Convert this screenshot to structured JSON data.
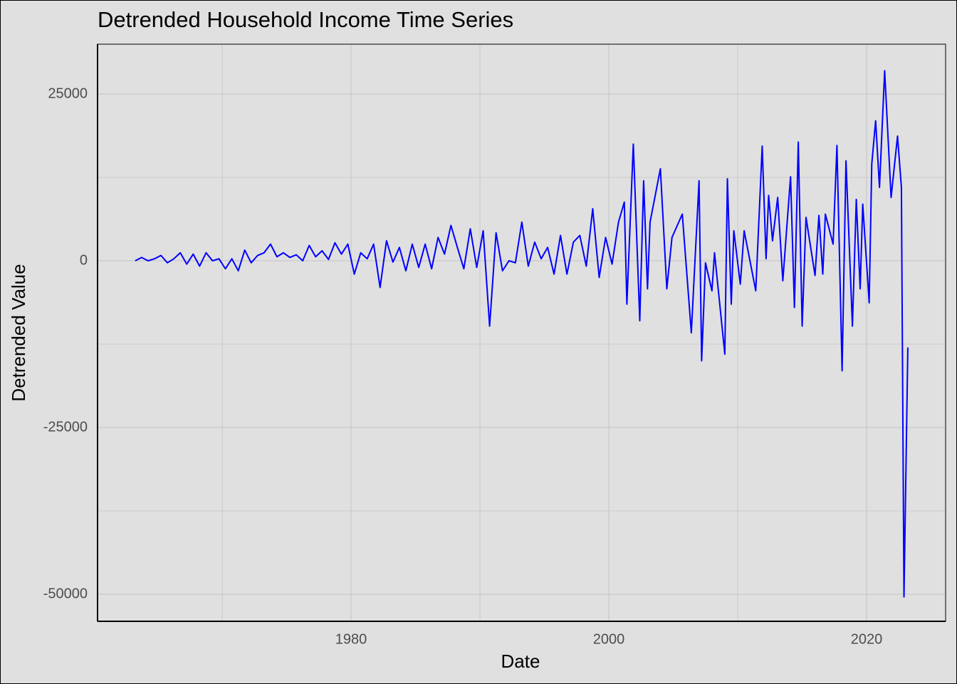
{
  "chart_data": {
    "type": "line",
    "title": "Detrended Household Income Time Series",
    "xlabel": "Date",
    "ylabel": "Detrended Value",
    "color": "#0000ff",
    "grid": true,
    "xlim": [
      1960.33,
      2026.13
    ],
    "ylim": [
      -54060,
      32480
    ],
    "xticks": [
      1980,
      2000,
      2020
    ],
    "yticks": [
      -50000,
      -25000,
      0,
      25000
    ],
    "x": [
      1963.25,
      1963.75,
      1964.25,
      1964.75,
      1965.25,
      1965.75,
      1966.25,
      1966.75,
      1967.25,
      1967.75,
      1968.25,
      1968.75,
      1969.25,
      1969.75,
      1970.25,
      1970.75,
      1971.25,
      1971.75,
      1972.25,
      1972.75,
      1973.25,
      1973.75,
      1974.25,
      1974.75,
      1975.25,
      1975.75,
      1976.25,
      1976.75,
      1977.25,
      1977.75,
      1978.25,
      1978.75,
      1979.25,
      1979.75,
      1980.25,
      1980.75,
      1981.25,
      1981.75,
      1982.25,
      1982.75,
      1983.25,
      1983.75,
      1984.25,
      1984.75,
      1985.25,
      1985.75,
      1986.25,
      1986.75,
      1987.25,
      1987.75,
      1988.25,
      1988.75,
      1989.25,
      1989.75,
      1990.25,
      1990.75,
      1991.25,
      1991.75,
      1992.25,
      1992.75,
      1993.25,
      1993.75,
      1994.25,
      1994.75,
      1995.25,
      1995.75,
      1996.25,
      1996.75,
      1997.25,
      1997.75,
      1998.25,
      1998.75,
      1999.25,
      1999.75,
      2000.25,
      2000.75,
      2001.2,
      2001.4,
      2001.9,
      2002.4,
      2002.7,
      2003,
      2003.2,
      2004,
      2004.5,
      2004.9,
      2005.7,
      2006.4,
      2007,
      2007.2,
      2007.5,
      2008,
      2008.2,
      2009,
      2009.2,
      2009.5,
      2009.7,
      2010.2,
      2010.5,
      2011.4,
      2011.9,
      2012.2,
      2012.4,
      2012.7,
      2013.1,
      2013.5,
      2014.1,
      2014.4,
      2014.7,
      2015,
      2015.3,
      2016,
      2016.3,
      2016.6,
      2016.8,
      2017.4,
      2017.7,
      2018.1,
      2018.4,
      2018.9,
      2019.2,
      2019.5,
      2019.7,
      2020.2,
      2020.4,
      2020.7,
      2021,
      2021.4,
      2021.9,
      2022.4,
      2022.7,
      2022.9,
      2023.2
    ],
    "values": [
      0,
      500,
      0,
      300,
      800,
      -300,
      300,
      1200,
      -500,
      1000,
      -800,
      1200,
      0,
      300,
      -1200,
      300,
      -1500,
      1600,
      -300,
      800,
      1200,
      2500,
      600,
      1200,
      500,
      900,
      0,
      2300,
      600,
      1500,
      200,
      2700,
      1000,
      2500,
      -2000,
      1200,
      300,
      2500,
      -4000,
      3000,
      -200,
      2000,
      -1500,
      2500,
      -1000,
      2500,
      -1200,
      3500,
      1000,
      5300,
      2000,
      -1200,
      4800,
      -1000,
      4500,
      -9800,
      4200,
      -1500,
      0,
      -300,
      5800,
      -800,
      2800,
      300,
      2000,
      -2000,
      3800,
      -2000,
      2800,
      3800,
      -800,
      7800,
      -2500,
      3500,
      -500,
      5800,
      8800,
      -6500,
      17500,
      -9000,
      12000,
      -4200,
      5800,
      13800,
      -4200,
      3500,
      7000,
      -10800,
      12000,
      -15000,
      -300,
      -4500,
      1200,
      -14000,
      12300,
      -6500,
      4500,
      -3500,
      4500,
      -4500,
      17200,
      300,
      9800,
      3000,
      9500,
      -3000,
      12600,
      -7000,
      17800,
      -9800,
      6500,
      -2200,
      6800,
      -2000,
      7000,
      2500,
      17300,
      -16500,
      15000,
      -9800,
      9200,
      -4200,
      8500,
      -6300,
      14500,
      21000,
      11000,
      28500,
      9500,
      18700,
      11000,
      -50400,
      -13000
    ]
  }
}
